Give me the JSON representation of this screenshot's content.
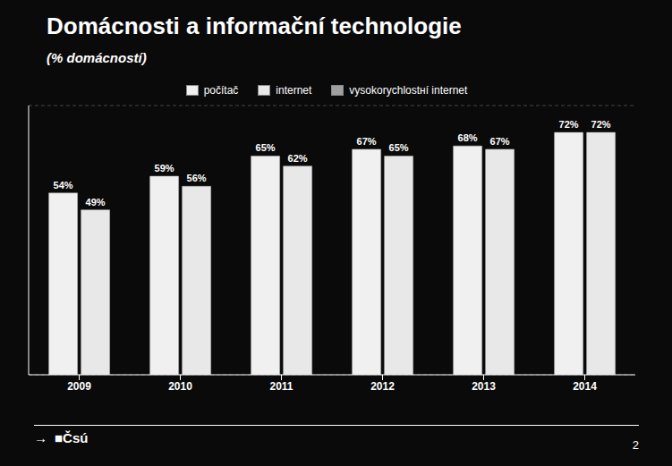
{
  "chart_data": {
    "type": "bar",
    "title": "Domácnosti a informační technologie",
    "subtitle": "(% domácností)",
    "categories": [
      "2009",
      "2010",
      "2011",
      "2012",
      "2013",
      "2014"
    ],
    "series": [
      {
        "name": "počítač",
        "color": "#f0f0f0",
        "values": [
          54,
          59,
          65,
          67,
          68,
          72
        ],
        "value_labels": [
          "54%",
          "59%",
          "65%",
          "67%",
          "68%",
          "72%"
        ]
      },
      {
        "name": "internet",
        "color": "#e8e8e8",
        "values": [
          49,
          56,
          62,
          65,
          67,
          72
        ],
        "value_labels": [
          "49%",
          "56%",
          "62%",
          "65%",
          "67%",
          "72%"
        ]
      },
      {
        "name": "vysokorychlostнí internet",
        "color": "#a0a0a0",
        "values": [
          null,
          null,
          null,
          null,
          null,
          null
        ]
      }
    ],
    "ylim": [
      0,
      80
    ],
    "yticks": [
      0,
      10,
      20,
      30,
      40,
      50,
      60,
      70,
      80
    ],
    "grid": true,
    "legend": "top",
    "data_labels": true,
    "tick_labels": "x",
    "annotations": [
      "→",
      "■Čsú",
      "2"
    ]
  }
}
